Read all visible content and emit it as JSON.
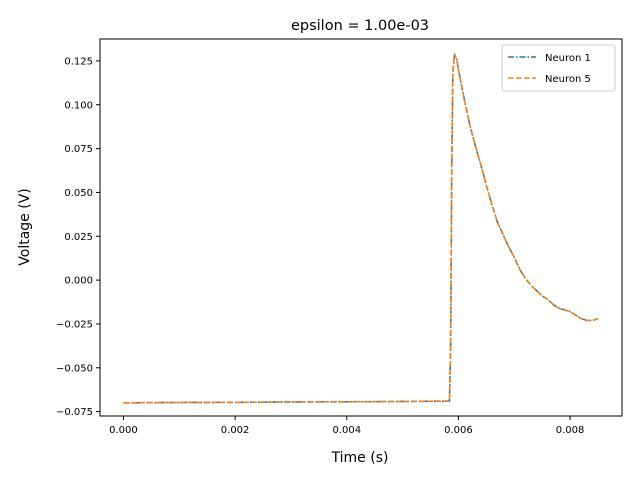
{
  "chart_data": {
    "type": "line",
    "title": "epsilon = 1.00e-03",
    "xlabel": "Time (s)",
    "ylabel": "Voltage (V)",
    "xlim": [
      -0.00042,
      0.00893
    ],
    "ylim": [
      -0.0775,
      0.1375
    ],
    "xticks": [
      0.0,
      0.002,
      0.004,
      0.006,
      0.008
    ],
    "xtick_labels": [
      "0.000",
      "0.002",
      "0.004",
      "0.006",
      "0.008"
    ],
    "yticks": [
      -0.075,
      -0.05,
      -0.025,
      0.0,
      0.025,
      0.05,
      0.075,
      0.1,
      0.125
    ],
    "ytick_labels": [
      "−0.075",
      "−0.050",
      "−0.025",
      "0.000",
      "0.025",
      "0.050",
      "0.075",
      "0.100",
      "0.125"
    ],
    "grid": false,
    "legend_position": "top-right",
    "series": [
      {
        "name": "Neuron 1",
        "color": "#1f77b4",
        "dash": "dashdot",
        "x": [
          0.0,
          0.001,
          0.002,
          0.003,
          0.004,
          0.005,
          0.00584,
          0.00586,
          0.00588,
          0.0059,
          0.00593,
          0.00597,
          0.006,
          0.0061,
          0.0062,
          0.0063,
          0.0064,
          0.0065,
          0.0066,
          0.0067,
          0.0068,
          0.0069,
          0.007,
          0.0071,
          0.0072,
          0.0073,
          0.0074,
          0.0075,
          0.0076,
          0.0077,
          0.0078,
          0.0079,
          0.008,
          0.0081,
          0.0082,
          0.0083,
          0.0084,
          0.0085
        ],
        "y": [
          -0.07,
          -0.0698,
          -0.0697,
          -0.0695,
          -0.0694,
          -0.0692,
          -0.069,
          -0.04,
          0.06,
          0.118,
          0.128,
          0.126,
          0.12,
          0.104,
          0.089,
          0.077,
          0.066,
          0.054,
          0.043,
          0.033,
          0.026,
          0.019,
          0.013,
          0.006,
          0.001,
          -0.003,
          -0.006,
          -0.009,
          -0.011,
          -0.014,
          -0.016,
          -0.017,
          -0.018,
          -0.02,
          -0.022,
          -0.023,
          -0.023,
          -0.022
        ]
      },
      {
        "name": "Neuron 5",
        "color": "#ff7f0e",
        "dash": "dashed",
        "x": [
          0.0,
          0.001,
          0.002,
          0.003,
          0.004,
          0.005,
          0.00584,
          0.00586,
          0.00588,
          0.0059,
          0.00593,
          0.00597,
          0.006,
          0.0061,
          0.0062,
          0.0063,
          0.0064,
          0.0065,
          0.0066,
          0.0067,
          0.0068,
          0.0069,
          0.007,
          0.0071,
          0.0072,
          0.0073,
          0.0074,
          0.0075,
          0.0076,
          0.0077,
          0.0078,
          0.0079,
          0.008,
          0.0081,
          0.0082,
          0.0083,
          0.0084,
          0.0085
        ],
        "y": [
          -0.07,
          -0.0698,
          -0.0697,
          -0.0695,
          -0.0694,
          -0.0692,
          -0.069,
          -0.038,
          0.062,
          0.119,
          0.129,
          0.126,
          0.12,
          0.104,
          0.089,
          0.077,
          0.066,
          0.054,
          0.043,
          0.033,
          0.026,
          0.019,
          0.013,
          0.006,
          0.001,
          -0.003,
          -0.006,
          -0.009,
          -0.011,
          -0.014,
          -0.016,
          -0.017,
          -0.018,
          -0.02,
          -0.022,
          -0.023,
          -0.023,
          -0.022
        ]
      }
    ]
  }
}
